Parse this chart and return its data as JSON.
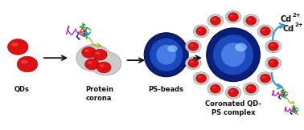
{
  "background_color": "#ffffff",
  "labels": {
    "qds": "QDs",
    "protein_corona": "Protein\ncorona",
    "ps_beads": "PS-beads",
    "complex": "Coronated QD-\nPS complex",
    "cd1": "Cd",
    "cd1_sup": "2+",
    "cd2": "Cd",
    "cd2_sup": "2+"
  },
  "colors": {
    "red_qd": "#dd1111",
    "red_qd_dark": "#990000",
    "red_qd_hi": "#ff6666",
    "blue_dark": "#0a1f7a",
    "blue_mid": "#1e4fc7",
    "blue_light": "#5588ee",
    "blue_highlight": "#99ccff",
    "gray_shell": "#cccccc",
    "gray_shell_edge": "#999999",
    "arrow_black": "#111111",
    "arrow_blue": "#3399cc",
    "text_color": "#111111"
  }
}
